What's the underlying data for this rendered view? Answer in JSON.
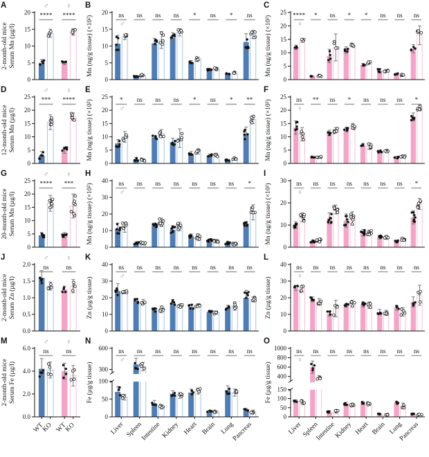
{
  "figure": {
    "background": "#ffffff",
    "colors": {
      "wt_male_fill": "#4f7db3",
      "ko_male_stroke": "#b3cce8",
      "wt_female_fill": "#f2a5c7",
      "ko_female_stroke": "#f8c9dc",
      "open_bar_fill": "#ffffff",
      "dot_wt": "#111111",
      "dot_ko_stroke": "#111111",
      "error_bar": "#777777",
      "sig_line": "#9a9a9a",
      "sex_symbol": "#9a9a9a",
      "axis": "#111111"
    },
    "male_symbol": "♂",
    "female_symbol": "♀",
    "tissues": [
      "Liver",
      "Spleen",
      "Intestine",
      "Kidney",
      "Heart",
      "Brain",
      "Lung",
      "Pancreas"
    ],
    "serum_xticklabels": [
      "WT",
      "KO",
      "WT",
      "KO"
    ],
    "genotypes": [
      "WT",
      "KO"
    ]
  },
  "chart_data": [
    {
      "id": "A",
      "type": "bar",
      "kind": "serum",
      "sex": "both",
      "row": 0,
      "col": 0,
      "ylabel_lines": [
        "2-month-old mice",
        "Serum Mn (µg/l)"
      ],
      "ylim": [
        0,
        20
      ],
      "yticks": [
        0,
        5,
        10,
        15,
        20
      ],
      "tick_decimals": 0,
      "series": [
        {
          "name": "WT",
          "values": [
            5.0,
            5.0
          ],
          "errors": [
            1.0,
            0.5
          ]
        },
        {
          "name": "KO",
          "values": [
            13.8,
            14.2
          ],
          "errors": [
            1.2,
            1.0
          ]
        }
      ],
      "sig": [
        "****",
        "****"
      ],
      "n_dots": 4,
      "show_xticklabels": false
    },
    {
      "id": "B",
      "type": "bar",
      "kind": "tissue",
      "sex": "male",
      "row": 0,
      "col": 1,
      "ylabel": "Mn (ng/g tissue) (×10²)",
      "ylim": [
        0,
        20
      ],
      "yticks": [
        0,
        5,
        10,
        15,
        20
      ],
      "tick_decimals": 0,
      "series": [
        {
          "name": "WT",
          "values": [
            10.7,
            1.0,
            10.8,
            12.5,
            5.2,
            3.0,
            1.6,
            11.2
          ],
          "errors": [
            2.5,
            0.3,
            1.5,
            1.5,
            0.5,
            0.4,
            0.3,
            2.5
          ]
        },
        {
          "name": "KO",
          "values": [
            12.7,
            1.3,
            11.8,
            14.0,
            6.2,
            3.2,
            2.0,
            13.5
          ],
          "errors": [
            0.8,
            0.3,
            2.5,
            1.0,
            0.5,
            0.5,
            0.4,
            1.2
          ]
        }
      ],
      "sig": [
        "ns",
        "ns",
        "ns",
        "ns",
        "*",
        "ns",
        "*",
        "ns"
      ],
      "n_dots": 5,
      "show_xticklabels": false
    },
    {
      "id": "C",
      "type": "bar",
      "kind": "tissue",
      "sex": "female",
      "row": 0,
      "col": 2,
      "ylabel": "Mn (ng/g tissue) (×10²)",
      "ylim": [
        0,
        25
      ],
      "yticks": [
        0,
        5,
        10,
        15,
        20,
        25
      ],
      "tick_decimals": 0,
      "series": [
        {
          "name": "WT",
          "values": [
            12.0,
            1.2,
            8.8,
            11.0,
            5.5,
            3.3,
            2.0,
            11.5
          ],
          "errors": [
            0.8,
            0.2,
            2.5,
            1.2,
            0.5,
            0.8,
            0.4,
            1.5
          ]
        },
        {
          "name": "KO",
          "values": [
            14.5,
            1.5,
            12.0,
            12.8,
            6.3,
            3.3,
            1.7,
            16.5
          ],
          "errors": [
            0.6,
            0.3,
            5.0,
            0.6,
            0.5,
            0.5,
            0.4,
            3.5
          ]
        }
      ],
      "sig": [
        "****",
        "*",
        "ns",
        "*",
        "*",
        "ns",
        "ns",
        "ns"
      ],
      "n_dots": 4,
      "show_xticklabels": false
    },
    {
      "id": "D",
      "type": "bar",
      "kind": "serum",
      "sex": "both",
      "row": 1,
      "col": 0,
      "ylabel_lines": [
        "12-month-old mice",
        "Serum Mn (µg/l)"
      ],
      "ylim": [
        0,
        25
      ],
      "yticks": [
        0,
        5,
        10,
        15,
        20,
        25
      ],
      "tick_decimals": 0,
      "series": [
        {
          "name": "WT",
          "values": [
            3.0,
            5.0
          ],
          "errors": [
            1.5,
            1.2
          ]
        },
        {
          "name": "KO",
          "values": [
            15.5,
            17.5
          ],
          "errors": [
            2.8,
            1.5
          ]
        }
      ],
      "sig": [
        "***",
        "****"
      ],
      "n_dots": 6,
      "show_xticklabels": false
    },
    {
      "id": "E",
      "type": "bar",
      "kind": "tissue",
      "sex": "male",
      "row": 1,
      "col": 1,
      "ylabel": "Mn (ng/g tissue) (×10²)",
      "ylim": [
        0,
        25
      ],
      "yticks": [
        0,
        5,
        10,
        15,
        20,
        25
      ],
      "tick_decimals": 0,
      "series": [
        {
          "name": "WT",
          "values": [
            7.5,
            1.5,
            9.8,
            8.0,
            3.5,
            3.0,
            1.2,
            11.2
          ],
          "errors": [
            1.5,
            0.8,
            0.8,
            1.5,
            1.0,
            0.5,
            0.3,
            2.5
          ]
        },
        {
          "name": "KO",
          "values": [
            10.0,
            1.3,
            11.2,
            9.5,
            4.5,
            3.0,
            1.8,
            16.5
          ],
          "errors": [
            2.0,
            0.5,
            1.5,
            3.5,
            1.0,
            0.5,
            0.3,
            1.5
          ]
        }
      ],
      "sig": [
        "*",
        "ns",
        "ns",
        "ns",
        "*",
        "ns",
        "*",
        "**"
      ],
      "n_dots": 5,
      "show_xticklabels": false
    },
    {
      "id": "F",
      "type": "bar",
      "kind": "tissue",
      "sex": "female",
      "row": 1,
      "col": 2,
      "ylabel": "Mn (ng/g tissue) (×10²)",
      "ylim": [
        0,
        25
      ],
      "yticks": [
        0,
        5,
        10,
        15,
        20,
        25
      ],
      "tick_decimals": 0,
      "series": [
        {
          "name": "WT",
          "values": [
            13.5,
            2.3,
            11.5,
            12.8,
            7.0,
            4.5,
            2.3,
            17.5
          ],
          "errors": [
            2.5,
            0.3,
            1.0,
            0.8,
            0.6,
            0.5,
            0.4,
            1.5
          ]
        },
        {
          "name": "KO",
          "values": [
            11.0,
            2.4,
            12.5,
            14.0,
            6.5,
            4.6,
            2.5,
            21.0
          ],
          "errors": [
            2.5,
            0.3,
            1.0,
            1.0,
            1.2,
            0.4,
            0.5,
            1.0
          ]
        }
      ],
      "sig": [
        "ns",
        "**",
        "ns",
        "*",
        "ns",
        "ns",
        "ns",
        "*"
      ],
      "n_dots": 5,
      "show_xticklabels": false
    },
    {
      "id": "G",
      "type": "bar",
      "kind": "serum",
      "sex": "both",
      "row": 2,
      "col": 0,
      "ylabel_lines": [
        "20-month-old mice",
        "Serum Mn (µg/l)"
      ],
      "ylim": [
        0,
        25
      ],
      "yticks": [
        0,
        5,
        10,
        15,
        20,
        25
      ],
      "tick_decimals": 0,
      "series": [
        {
          "name": "WT",
          "values": [
            4.5,
            4.5
          ],
          "errors": [
            1.0,
            1.0
          ]
        },
        {
          "name": "KO",
          "values": [
            16.5,
            15.5
          ],
          "errors": [
            3.0,
            4.5
          ]
        }
      ],
      "sig": [
        "****",
        "***"
      ],
      "n_dots": 7,
      "show_xticklabels": false
    },
    {
      "id": "H",
      "type": "bar",
      "kind": "tissue",
      "sex": "male",
      "row": 2,
      "col": 1,
      "ylabel": "Mn (ng/g tissue) (×10²)",
      "ylim": [
        0,
        40
      ],
      "yticks": [
        0,
        10,
        20,
        30,
        40
      ],
      "tick_decimals": 0,
      "series": [
        {
          "name": "WT",
          "values": [
            11,
            2.5,
            13,
            10.5,
            6.5,
            4,
            2.5,
            14
          ],
          "errors": [
            3.5,
            0.8,
            1.5,
            2.5,
            1.5,
            1.0,
            0.8,
            1.5
          ]
        },
        {
          "name": "KO",
          "values": [
            12,
            2.5,
            15,
            12.5,
            6,
            3.5,
            2,
            21
          ],
          "errors": [
            3.0,
            0.8,
            2.5,
            2.5,
            2.0,
            1.0,
            0.8,
            4.5
          ]
        }
      ],
      "sig": [
        "ns",
        "ns",
        "ns",
        "ns",
        "ns",
        "ns",
        "ns",
        "*"
      ],
      "n_dots": 7,
      "show_xticklabels": false
    },
    {
      "id": "I",
      "type": "bar",
      "kind": "tissue",
      "sex": "female",
      "row": 2,
      "col": 2,
      "ylabel": "Mn (ng/g tissue) (×10²)",
      "ylim": [
        0,
        30
      ],
      "yticks": [
        0,
        10,
        20,
        30
      ],
      "tick_decimals": 0,
      "series": [
        {
          "name": "WT",
          "values": [
            10,
            2.5,
            13,
            12,
            6.5,
            4.5,
            2.5,
            13.5
          ],
          "errors": [
            1.5,
            0.6,
            2.5,
            3.0,
            1.5,
            0.8,
            0.6,
            3.0
          ]
        },
        {
          "name": "KO",
          "values": [
            13.5,
            3,
            17,
            13,
            6.5,
            4.5,
            3.5,
            19.5
          ],
          "errors": [
            2.0,
            0.8,
            2.0,
            3.0,
            1.2,
            0.8,
            0.8,
            2.5
          ]
        }
      ],
      "sig": [
        "ns",
        "ns",
        "ns",
        "ns",
        "ns",
        "ns",
        "ns",
        "*"
      ],
      "n_dots": 7,
      "show_xticklabels": false
    },
    {
      "id": "J",
      "type": "bar",
      "kind": "serum",
      "sex": "both",
      "row": 3,
      "col": 0,
      "ylabel_lines": [
        "2-month-old mice",
        "Serum Zn (µg/l)"
      ],
      "ylim": [
        0,
        2
      ],
      "yticks": [
        0,
        0.5,
        1,
        1.5,
        2
      ],
      "tick_decimals": 1,
      "series": [
        {
          "name": "WT",
          "values": [
            1.6,
            1.25
          ],
          "errors": [
            0.22,
            0.1
          ]
        },
        {
          "name": "KO",
          "values": [
            1.35,
            1.35
          ],
          "errors": [
            0.12,
            0.2
          ]
        }
      ],
      "sig": [
        "ns",
        "ns"
      ],
      "n_dots": 4,
      "show_xticklabels": false
    },
    {
      "id": "K",
      "type": "bar",
      "kind": "tissue",
      "sex": "male",
      "row": 3,
      "col": 1,
      "ylabel": "Zn (µg/g tissue)",
      "ylim": [
        0,
        40
      ],
      "yticks": [
        0,
        10,
        20,
        30,
        40
      ],
      "tick_decimals": 0,
      "series": [
        {
          "name": "WT",
          "values": [
            24,
            18,
            12.5,
            16.5,
            14.5,
            11.5,
            14,
            20
          ],
          "errors": [
            4.5,
            1.5,
            1.5,
            2.5,
            1.5,
            0.8,
            1.5,
            4.5
          ]
        },
        {
          "name": "KO",
          "values": [
            23.5,
            17.5,
            13,
            15,
            15.5,
            11,
            15,
            19
          ],
          "errors": [
            1.0,
            1.5,
            2.0,
            1.0,
            1.0,
            1.0,
            2.5,
            1.5
          ]
        }
      ],
      "sig": [
        "ns",
        "ns",
        "ns",
        "ns",
        "ns",
        "ns",
        "ns",
        "ns"
      ],
      "n_dots": 5,
      "show_xticklabels": false
    },
    {
      "id": "L",
      "type": "bar",
      "kind": "tissue",
      "sex": "female",
      "row": 3,
      "col": 2,
      "ylabel": "Zn (µg/g tissue)",
      "ylim": [
        0,
        40
      ],
      "yticks": [
        0,
        10,
        20,
        30,
        40
      ],
      "tick_decimals": 0,
      "series": [
        {
          "name": "WT",
          "values": [
            26,
            19,
            10.5,
            15.5,
            16,
            11.5,
            14,
            17.5
          ],
          "errors": [
            1.5,
            1.5,
            1.5,
            1.0,
            1.5,
            1.5,
            1.5,
            3.0
          ]
        },
        {
          "name": "KO",
          "values": [
            25.5,
            17.5,
            13.5,
            16.5,
            15.5,
            11,
            11.5,
            21.5
          ],
          "errors": [
            2.0,
            2.0,
            5.0,
            2.0,
            2.0,
            1.5,
            2.5,
            6.0
          ]
        }
      ],
      "sig": [
        "ns",
        "ns",
        "ns",
        "ns",
        "ns",
        "ns",
        "ns",
        "ns"
      ],
      "n_dots": 4,
      "show_xticklabels": false
    },
    {
      "id": "M",
      "type": "bar",
      "kind": "serum",
      "sex": "both",
      "row": 4,
      "col": 0,
      "ylabel_lines": [
        "2-month-old mice",
        "Serum Fe (µg/l)"
      ],
      "ylim": [
        0,
        6
      ],
      "yticks": [
        0,
        2,
        4,
        6
      ],
      "tick_decimals": 1,
      "series": [
        {
          "name": "WT",
          "values": [
            4.2,
            4.0
          ],
          "errors": [
            0.9,
            0.7
          ]
        },
        {
          "name": "KO",
          "values": [
            4.1,
            3.6
          ],
          "errors": [
            0.7,
            0.9
          ]
        }
      ],
      "sig": [
        "ns",
        "ns"
      ],
      "n_dots": 4,
      "show_xticklabels": true
    },
    {
      "id": "N",
      "type": "bar",
      "kind": "tissue",
      "sex": "male",
      "row": 4,
      "col": 1,
      "ylabel": "Fe (µg/g tissue)",
      "broken": {
        "lower": {
          "domain": [
            0,
            100
          ],
          "ticks": [
            0,
            50,
            100
          ]
        },
        "upper": {
          "domain": [
            250,
            600
          ],
          "ticks": [
            300,
            600
          ]
        },
        "lower_frac": 0.52,
        "upper_frac": 0.36
      },
      "tick_decimals": 0,
      "series": [
        {
          "name": "WT",
          "values": [
            70,
            370,
            38,
            65,
            68,
            15,
            75,
            18
          ],
          "errors": [
            15,
            90,
            8,
            8,
            10,
            3,
            12,
            6
          ]
        },
        {
          "name": "KO",
          "values": [
            55,
            340,
            28,
            60,
            72,
            14,
            68,
            14
          ],
          "errors": [
            8,
            60,
            6,
            8,
            8,
            3,
            10,
            5
          ]
        }
      ],
      "sig": [
        "ns",
        "ns",
        "ns",
        "ns",
        "ns",
        "ns",
        "ns",
        "ns"
      ],
      "n_dots": 4,
      "show_xticklabels": true
    },
    {
      "id": "O",
      "type": "bar",
      "kind": "tissue",
      "sex": "female",
      "row": 4,
      "col": 2,
      "ylabel": "Fe (µg/g tissue)",
      "broken": {
        "lower": {
          "domain": [
            0,
            150
          ],
          "ticks": [
            0,
            50,
            100,
            150
          ]
        },
        "upper": {
          "domain": [
            300,
            1000
          ],
          "ticks": [
            400,
            600,
            800,
            1000
          ]
        },
        "lower_frac": 0.4,
        "upper_frac": 0.48
      },
      "tick_decimals": 0,
      "series": [
        {
          "name": "WT",
          "values": [
            85,
            600,
            25,
            70,
            75,
            15,
            78,
            15
          ],
          "errors": [
            8,
            130,
            6,
            10,
            8,
            4,
            8,
            4
          ]
        },
        {
          "name": "KO",
          "values": [
            80,
            380,
            28,
            65,
            70,
            12,
            60,
            13
          ],
          "errors": [
            10,
            40,
            8,
            10,
            8,
            3,
            15,
            4
          ]
        }
      ],
      "sig": [
        "ns",
        "ns",
        "ns",
        "ns",
        "ns",
        "ns",
        "ns",
        "ns"
      ],
      "n_dots": 4,
      "show_xticklabels": true
    }
  ]
}
